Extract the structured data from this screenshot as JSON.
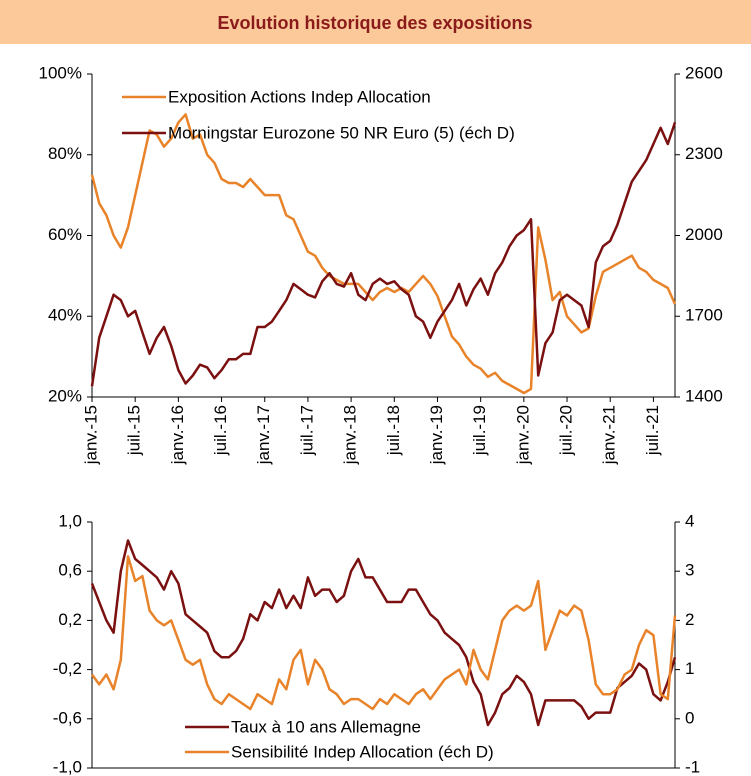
{
  "title": "Evolution historique des expositions",
  "chart_data": [
    {
      "type": "line",
      "x": [
        "2015-01",
        "2015-02",
        "2015-03",
        "2015-04",
        "2015-05",
        "2015-06",
        "2015-07",
        "2015-08",
        "2015-09",
        "2015-10",
        "2015-11",
        "2015-12",
        "2016-01",
        "2016-02",
        "2016-03",
        "2016-04",
        "2016-05",
        "2016-06",
        "2016-07",
        "2016-08",
        "2016-09",
        "2016-10",
        "2016-11",
        "2016-12",
        "2017-01",
        "2017-02",
        "2017-03",
        "2017-04",
        "2017-05",
        "2017-06",
        "2017-07",
        "2017-08",
        "2017-09",
        "2017-10",
        "2017-11",
        "2017-12",
        "2018-01",
        "2018-02",
        "2018-03",
        "2018-04",
        "2018-05",
        "2018-06",
        "2018-07",
        "2018-08",
        "2018-09",
        "2018-10",
        "2018-11",
        "2018-12",
        "2019-01",
        "2019-02",
        "2019-03",
        "2019-04",
        "2019-05",
        "2019-06",
        "2019-07",
        "2019-08",
        "2019-09",
        "2019-10",
        "2019-11",
        "2019-12",
        "2020-01",
        "2020-02",
        "2020-03",
        "2020-04",
        "2020-05",
        "2020-06",
        "2020-07",
        "2020-08",
        "2020-09",
        "2020-10",
        "2020-11",
        "2020-12",
        "2021-01",
        "2021-02",
        "2021-03",
        "2021-04",
        "2021-05",
        "2021-06",
        "2021-07",
        "2021-08",
        "2021-09",
        "2021-10"
      ],
      "xlim": [
        "2015-01",
        "2021-10"
      ],
      "xticks": [
        {
          "value": "2015-01",
          "label": "janv.-15"
        },
        {
          "value": "2015-07",
          "label": "juil.-15"
        },
        {
          "value": "2016-01",
          "label": "janv.-16"
        },
        {
          "value": "2016-07",
          "label": "juil.-16"
        },
        {
          "value": "2017-01",
          "label": "janv.-17"
        },
        {
          "value": "2017-07",
          "label": "juil.-17"
        },
        {
          "value": "2018-01",
          "label": "janv.-18"
        },
        {
          "value": "2018-07",
          "label": "juil.-18"
        },
        {
          "value": "2019-01",
          "label": "janv.-19"
        },
        {
          "value": "2019-07",
          "label": "juil.-19"
        },
        {
          "value": "2020-01",
          "label": "janv.-20"
        },
        {
          "value": "2020-07",
          "label": "juil.-20"
        },
        {
          "value": "2021-01",
          "label": "janv.-21"
        },
        {
          "value": "2021-07",
          "label": "juil.-21"
        }
      ],
      "ylim": [
        20,
        100
      ],
      "yticks": [
        {
          "value": 20,
          "label": "20%"
        },
        {
          "value": 40,
          "label": "40%"
        },
        {
          "value": 60,
          "label": "60%"
        },
        {
          "value": 80,
          "label": "80%"
        },
        {
          "value": 100,
          "label": "100%"
        }
      ],
      "y2lim": [
        1400,
        2600
      ],
      "y2ticks": [
        1400,
        1700,
        2000,
        2300,
        2600
      ],
      "legend": "upper left",
      "series": [
        {
          "name": "Exposition Actions Indep Allocation",
          "color": "#e8832a",
          "values": [
            75,
            68,
            65,
            60,
            57,
            62,
            70,
            78,
            86,
            85,
            82,
            84,
            88,
            90,
            84,
            85,
            80,
            78,
            74,
            73,
            73,
            72,
            74,
            72,
            70,
            70,
            70,
            65,
            64,
            60,
            56,
            55,
            52,
            50,
            49,
            48,
            48,
            48,
            46,
            44,
            46,
            47,
            46,
            47,
            46,
            48,
            50,
            48,
            45,
            40,
            35,
            33,
            30,
            28,
            27,
            25,
            26,
            24,
            23,
            22,
            21,
            22,
            62,
            54,
            44,
            46,
            40,
            38,
            36,
            37,
            45,
            51,
            52,
            53,
            54,
            55,
            52,
            51,
            49,
            48,
            47,
            43
          ]
        },
        {
          "name": "Morningstar Eurozone 50 NR Euro (5) (éch D)",
          "color": "#7b1010",
          "axis": "y2",
          "values": [
            1440,
            1620,
            1700,
            1780,
            1760,
            1700,
            1720,
            1640,
            1560,
            1620,
            1660,
            1590,
            1500,
            1450,
            1480,
            1520,
            1510,
            1470,
            1500,
            1540,
            1540,
            1560,
            1560,
            1660,
            1660,
            1680,
            1720,
            1760,
            1820,
            1800,
            1780,
            1770,
            1830,
            1860,
            1820,
            1810,
            1860,
            1780,
            1760,
            1820,
            1840,
            1820,
            1830,
            1800,
            1780,
            1700,
            1680,
            1620,
            1680,
            1720,
            1760,
            1820,
            1740,
            1800,
            1840,
            1780,
            1860,
            1900,
            1960,
            2000,
            2020,
            2060,
            1480,
            1600,
            1640,
            1760,
            1780,
            1760,
            1740,
            1660,
            1900,
            1960,
            1980,
            2040,
            2120,
            2200,
            2240,
            2280,
            2340,
            2400,
            2340,
            2420
          ]
        }
      ]
    },
    {
      "type": "line",
      "x": [
        "2015-01",
        "2015-02",
        "2015-03",
        "2015-04",
        "2015-05",
        "2015-06",
        "2015-07",
        "2015-08",
        "2015-09",
        "2015-10",
        "2015-11",
        "2015-12",
        "2016-01",
        "2016-02",
        "2016-03",
        "2016-04",
        "2016-05",
        "2016-06",
        "2016-07",
        "2016-08",
        "2016-09",
        "2016-10",
        "2016-11",
        "2016-12",
        "2017-01",
        "2017-02",
        "2017-03",
        "2017-04",
        "2017-05",
        "2017-06",
        "2017-07",
        "2017-08",
        "2017-09",
        "2017-10",
        "2017-11",
        "2017-12",
        "2018-01",
        "2018-02",
        "2018-03",
        "2018-04",
        "2018-05",
        "2018-06",
        "2018-07",
        "2018-08",
        "2018-09",
        "2018-10",
        "2018-11",
        "2018-12",
        "2019-01",
        "2019-02",
        "2019-03",
        "2019-04",
        "2019-05",
        "2019-06",
        "2019-07",
        "2019-08",
        "2019-09",
        "2019-10",
        "2019-11",
        "2019-12",
        "2020-01",
        "2020-02",
        "2020-03",
        "2020-04",
        "2020-05",
        "2020-06",
        "2020-07",
        "2020-08",
        "2020-09",
        "2020-10",
        "2020-11",
        "2020-12",
        "2021-01",
        "2021-02",
        "2021-03",
        "2021-04",
        "2021-05",
        "2021-06",
        "2021-07",
        "2021-08",
        "2021-09",
        "2021-10"
      ],
      "xlim": [
        "2015-01",
        "2021-10"
      ],
      "ylim": [
        -1.0,
        1.0
      ],
      "yticks": [
        {
          "value": -1.0,
          "label": "-1,0"
        },
        {
          "value": -0.6,
          "label": "-0,6"
        },
        {
          "value": -0.2,
          "label": "-0,2"
        },
        {
          "value": 0.2,
          "label": "0,2"
        },
        {
          "value": 0.6,
          "label": "0,6"
        },
        {
          "value": 1.0,
          "label": "1,0"
        }
      ],
      "y2lim": [
        -1,
        4
      ],
      "y2ticks": [
        -1,
        0,
        1,
        2,
        3,
        4
      ],
      "legend": "lower center",
      "series": [
        {
          "name": "Taux à 10 ans Allemagne",
          "color": "#7b1010",
          "values": [
            0.5,
            0.35,
            0.2,
            0.1,
            0.6,
            0.85,
            0.7,
            0.65,
            0.6,
            0.55,
            0.45,
            0.6,
            0.5,
            0.25,
            0.2,
            0.15,
            0.1,
            -0.05,
            -0.1,
            -0.1,
            -0.05,
            0.05,
            0.25,
            0.2,
            0.35,
            0.3,
            0.45,
            0.3,
            0.4,
            0.3,
            0.55,
            0.4,
            0.45,
            0.45,
            0.35,
            0.4,
            0.6,
            0.7,
            0.55,
            0.55,
            0.45,
            0.35,
            0.35,
            0.35,
            0.45,
            0.45,
            0.35,
            0.25,
            0.2,
            0.1,
            0.05,
            0.0,
            -0.1,
            -0.3,
            -0.4,
            -0.65,
            -0.55,
            -0.4,
            -0.35,
            -0.25,
            -0.3,
            -0.4,
            -0.65,
            -0.45,
            -0.45,
            -0.45,
            -0.45,
            -0.45,
            -0.5,
            -0.6,
            -0.55,
            -0.55,
            -0.55,
            -0.35,
            -0.3,
            -0.25,
            -0.15,
            -0.2,
            -0.4,
            -0.45,
            -0.3,
            -0.1
          ]
        },
        {
          "name": "Sensibilité Indep Allocation (éch D)",
          "color": "#e8832a",
          "axis": "y2",
          "values": [
            0.9,
            0.7,
            0.9,
            0.6,
            1.2,
            3.3,
            2.8,
            2.9,
            2.2,
            2.0,
            1.9,
            2.0,
            1.6,
            1.2,
            1.1,
            1.2,
            0.7,
            0.4,
            0.3,
            0.5,
            0.4,
            0.3,
            0.2,
            0.5,
            0.4,
            0.3,
            0.8,
            0.6,
            1.2,
            1.4,
            0.7,
            1.2,
            1.0,
            0.6,
            0.5,
            0.3,
            0.4,
            0.4,
            0.3,
            0.2,
            0.4,
            0.3,
            0.5,
            0.4,
            0.3,
            0.5,
            0.6,
            0.4,
            0.6,
            0.8,
            0.9,
            1.0,
            0.7,
            1.4,
            1.0,
            0.8,
            1.4,
            2.0,
            2.2,
            2.3,
            2.2,
            2.3,
            2.8,
            1.4,
            1.8,
            2.2,
            2.1,
            2.3,
            2.2,
            1.6,
            0.7,
            0.5,
            0.5,
            0.6,
            0.9,
            1.0,
            1.5,
            1.8,
            1.7,
            0.5,
            0.4,
            2.1
          ]
        }
      ]
    }
  ]
}
